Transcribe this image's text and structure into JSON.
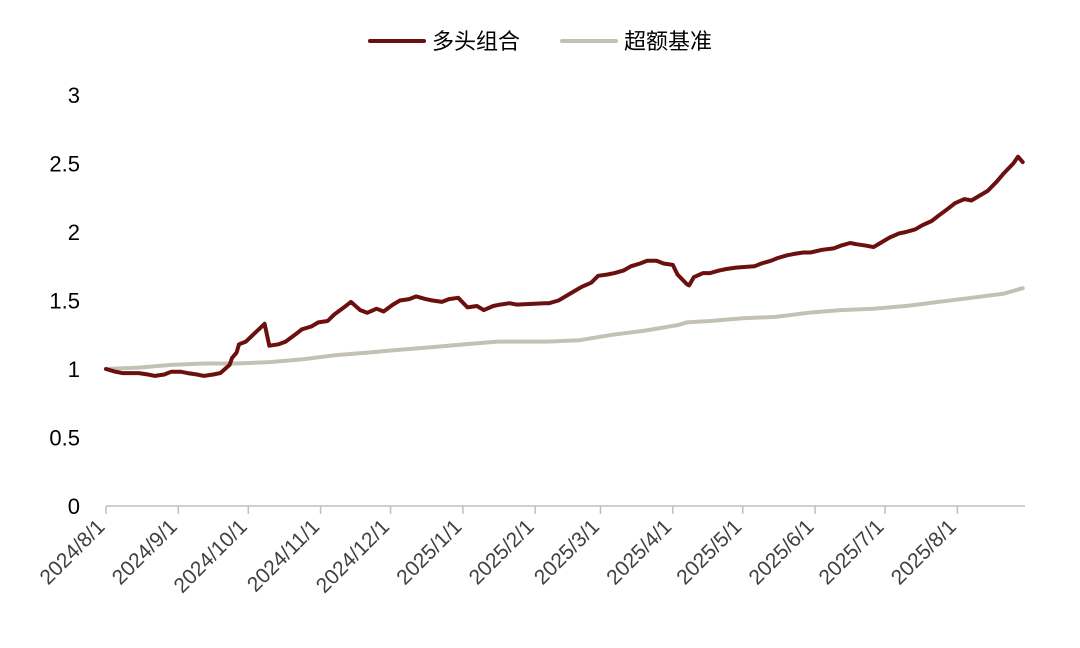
{
  "chart_data": {
    "type": "line",
    "title": "",
    "xlabel": "",
    "ylabel": "",
    "ylim": [
      0,
      3
    ],
    "xlim": [
      "2024-08-01",
      "2025-08-30"
    ],
    "grid": false,
    "legend_position": "top-center",
    "y_ticks": [
      "0",
      "0.5",
      "1",
      "1.5",
      "2",
      "2.5",
      "3"
    ],
    "x_ticks": [
      "2024/8/1",
      "2024/9/1",
      "2024/10/1",
      "2024/11/1",
      "2024/12/1",
      "2025/1/1",
      "2025/2/1",
      "2025/3/1",
      "2025/4/1",
      "2025/5/1",
      "2025/6/1",
      "2025/7/1",
      "2025/8/1"
    ],
    "series": [
      {
        "name": "多头组合",
        "color": "#6b0f0f",
        "x": [
          "2024-08-01",
          "2024-08-05",
          "2024-08-08",
          "2024-08-12",
          "2024-08-15",
          "2024-08-19",
          "2024-08-22",
          "2024-08-26",
          "2024-08-29",
          "2024-09-02",
          "2024-09-05",
          "2024-09-09",
          "2024-09-12",
          "2024-09-16",
          "2024-09-19",
          "2024-09-23",
          "2024-09-24",
          "2024-09-26",
          "2024-09-27",
          "2024-09-30",
          "2024-10-08",
          "2024-10-10",
          "2024-10-14",
          "2024-10-17",
          "2024-10-21",
          "2024-10-24",
          "2024-10-28",
          "2024-10-31",
          "2024-11-04",
          "2024-11-07",
          "2024-11-11",
          "2024-11-14",
          "2024-11-18",
          "2024-11-21",
          "2024-11-25",
          "2024-11-28",
          "2024-12-02",
          "2024-12-05",
          "2024-12-09",
          "2024-12-12",
          "2024-12-16",
          "2024-12-19",
          "2024-12-23",
          "2024-12-26",
          "2024-12-30",
          "2025-01-03",
          "2025-01-07",
          "2025-01-10",
          "2025-01-14",
          "2025-01-17",
          "2025-01-21",
          "2025-01-24",
          "2025-02-05",
          "2025-02-07",
          "2025-02-11",
          "2025-02-14",
          "2025-02-18",
          "2025-02-21",
          "2025-02-25",
          "2025-02-28",
          "2025-03-04",
          "2025-03-07",
          "2025-03-11",
          "2025-03-14",
          "2025-03-18",
          "2025-03-21",
          "2025-03-25",
          "2025-03-28",
          "2025-04-01",
          "2025-04-03",
          "2025-04-07",
          "2025-04-08",
          "2025-04-10",
          "2025-04-14",
          "2025-04-17",
          "2025-04-21",
          "2025-04-24",
          "2025-04-28",
          "2025-05-06",
          "2025-05-09",
          "2025-05-13",
          "2025-05-16",
          "2025-05-20",
          "2025-05-23",
          "2025-05-27",
          "2025-05-30",
          "2025-06-04",
          "2025-06-09",
          "2025-06-12",
          "2025-06-16",
          "2025-06-19",
          "2025-06-23",
          "2025-06-26",
          "2025-06-30",
          "2025-07-03",
          "2025-07-07",
          "2025-07-10",
          "2025-07-14",
          "2025-07-17",
          "2025-07-21",
          "2025-07-24",
          "2025-07-28",
          "2025-07-31",
          "2025-08-04",
          "2025-08-07",
          "2025-08-11",
          "2025-08-14",
          "2025-08-18",
          "2025-08-21",
          "2025-08-25",
          "2025-08-27",
          "2025-08-29"
        ],
        "values": [
          1.0,
          0.98,
          0.97,
          0.97,
          0.97,
          0.96,
          0.95,
          0.96,
          0.98,
          0.98,
          0.97,
          0.96,
          0.95,
          0.96,
          0.97,
          1.03,
          1.08,
          1.12,
          1.18,
          1.2,
          1.33,
          1.17,
          1.18,
          1.2,
          1.25,
          1.29,
          1.31,
          1.34,
          1.35,
          1.4,
          1.45,
          1.49,
          1.43,
          1.41,
          1.44,
          1.42,
          1.47,
          1.5,
          1.51,
          1.53,
          1.51,
          1.5,
          1.49,
          1.51,
          1.52,
          1.45,
          1.46,
          1.43,
          1.46,
          1.47,
          1.48,
          1.47,
          1.48,
          1.48,
          1.5,
          1.53,
          1.57,
          1.6,
          1.63,
          1.68,
          1.69,
          1.7,
          1.72,
          1.75,
          1.77,
          1.79,
          1.79,
          1.77,
          1.76,
          1.69,
          1.62,
          1.61,
          1.67,
          1.7,
          1.7,
          1.72,
          1.73,
          1.74,
          1.75,
          1.77,
          1.79,
          1.81,
          1.83,
          1.84,
          1.85,
          1.85,
          1.87,
          1.88,
          1.9,
          1.92,
          1.91,
          1.9,
          1.89,
          1.93,
          1.96,
          1.99,
          2.0,
          2.02,
          2.05,
          2.08,
          2.12,
          2.17,
          2.21,
          2.24,
          2.23,
          2.27,
          2.3,
          2.37,
          2.43,
          2.5,
          2.55,
          2.51
        ]
      },
      {
        "name": "超额基准",
        "color": "#c4c1b4",
        "x": [
          "2024-08-01",
          "2024-08-15",
          "2024-08-29",
          "2024-09-12",
          "2024-09-26",
          "2024-10-10",
          "2024-10-24",
          "2024-11-07",
          "2024-11-21",
          "2024-12-05",
          "2024-12-19",
          "2025-01-02",
          "2025-01-16",
          "2025-02-06",
          "2025-02-20",
          "2025-03-06",
          "2025-03-20",
          "2025-04-03",
          "2025-04-07",
          "2025-04-17",
          "2025-05-01",
          "2025-05-15",
          "2025-05-29",
          "2025-06-12",
          "2025-06-26",
          "2025-07-10",
          "2025-07-24",
          "2025-08-07",
          "2025-08-21",
          "2025-08-29"
        ],
        "values": [
          1.0,
          1.01,
          1.03,
          1.04,
          1.04,
          1.05,
          1.07,
          1.1,
          1.12,
          1.14,
          1.16,
          1.18,
          1.2,
          1.2,
          1.21,
          1.25,
          1.28,
          1.32,
          1.34,
          1.35,
          1.37,
          1.38,
          1.41,
          1.43,
          1.44,
          1.46,
          1.49,
          1.52,
          1.55,
          1.59
        ]
      }
    ]
  }
}
